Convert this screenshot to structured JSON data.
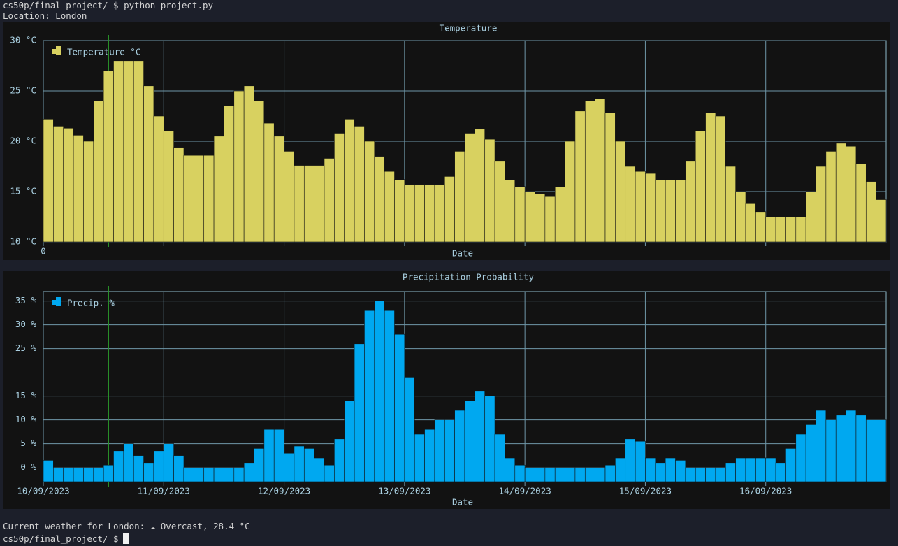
{
  "terminal": {
    "prompt_line": "cs50p/final_project/ $ python project.py",
    "location_line": "Location: London",
    "result_line": "Current weather for London: ☁ Overcast, 28.4 °C",
    "final_prompt": "cs50p/final_project/ $"
  },
  "chart_data": [
    {
      "type": "bar",
      "title": "Temperature",
      "xlabel": "Date",
      "legend": "upper left",
      "grid": true,
      "x": [
        0,
        2,
        4,
        6,
        8,
        10,
        12,
        14,
        16,
        18,
        20,
        22,
        24,
        26,
        28,
        30,
        32,
        34,
        36,
        38,
        40,
        42,
        44,
        46,
        48,
        50,
        52,
        54,
        56,
        58,
        60,
        62,
        64,
        66,
        68,
        70,
        72,
        74,
        76,
        78,
        80,
        82,
        84,
        86,
        88,
        90,
        92,
        94,
        96,
        98,
        100,
        102,
        104,
        106,
        108,
        110,
        112,
        114,
        116,
        118,
        120,
        122,
        124,
        126,
        128,
        130,
        132,
        134,
        136,
        138,
        140,
        142,
        144,
        146,
        148,
        150,
        152,
        154,
        156,
        158,
        160,
        162,
        164,
        166
      ],
      "series": [
        {
          "name": "Temperature °C",
          "color": "#d8d160",
          "values": [
            22.2,
            21.5,
            21.3,
            20.6,
            20.0,
            24.0,
            27.0,
            28.0,
            28.0,
            28.0,
            25.5,
            22.5,
            21.0,
            19.4,
            18.6,
            18.6,
            18.6,
            20.5,
            23.5,
            25.0,
            25.5,
            24.0,
            21.8,
            20.5,
            19.0,
            17.6,
            17.6,
            17.6,
            18.3,
            20.8,
            22.2,
            21.5,
            20.0,
            18.5,
            17.0,
            16.2,
            15.7,
            15.7,
            15.7,
            15.7,
            16.5,
            19.0,
            20.8,
            21.2,
            20.2,
            18.0,
            16.2,
            15.5,
            15.0,
            14.8,
            14.5,
            15.5,
            20.0,
            23.0,
            24.0,
            24.2,
            22.8,
            20.0,
            17.5,
            17.0,
            16.8,
            16.2,
            16.2,
            16.2,
            18.0,
            21.0,
            22.8,
            22.5,
            17.5,
            15.0,
            13.8,
            13.0,
            12.5,
            12.5,
            12.5,
            12.5,
            15.0,
            17.5,
            19.0,
            19.8,
            19.5,
            17.8,
            16.0,
            14.2
          ]
        }
      ],
      "xlim": [
        0,
        168
      ],
      "xticks": [
        {
          "value": 0,
          "label": "0"
        }
      ],
      "xgrid": [
        0,
        24,
        48,
        72,
        96,
        120,
        144
      ],
      "current_x": 13,
      "current_color": "#2a9a2a",
      "ylim": [
        10,
        30
      ],
      "yticks": [
        {
          "value": 10,
          "label": "10 °C"
        },
        {
          "value": 15,
          "label": "15 °C"
        },
        {
          "value": 20,
          "label": "20 °C"
        },
        {
          "value": 25,
          "label": "25 °C"
        },
        {
          "value": 30,
          "label": "30 °C"
        }
      ]
    },
    {
      "type": "bar",
      "title": "Precipitation Probability",
      "xlabel": "Date",
      "legend": "upper left",
      "grid": true,
      "x": [
        0,
        2,
        4,
        6,
        8,
        10,
        12,
        14,
        16,
        18,
        20,
        22,
        24,
        26,
        28,
        30,
        32,
        34,
        36,
        38,
        40,
        42,
        44,
        46,
        48,
        50,
        52,
        54,
        56,
        58,
        60,
        62,
        64,
        66,
        68,
        70,
        72,
        74,
        76,
        78,
        80,
        82,
        84,
        86,
        88,
        90,
        92,
        94,
        96,
        98,
        100,
        102,
        104,
        106,
        108,
        110,
        112,
        114,
        116,
        118,
        120,
        122,
        124,
        126,
        128,
        130,
        132,
        134,
        136,
        138,
        140,
        142,
        144,
        146,
        148,
        150,
        152,
        154,
        156,
        158,
        160,
        162,
        164,
        166
      ],
      "series": [
        {
          "name": "Precip. %",
          "color": "#00a8f0",
          "values": [
            1.5,
            0,
            0,
            0,
            0,
            0,
            0.5,
            3.5,
            5,
            2.5,
            1,
            3.5,
            5,
            2.5,
            0,
            0,
            0,
            0,
            0,
            0,
            1,
            4,
            8,
            8,
            3,
            4.5,
            4,
            2,
            0.5,
            6,
            14,
            26,
            33,
            35,
            33,
            28,
            19,
            7,
            8,
            10,
            10,
            12,
            14,
            16,
            15,
            7,
            2,
            0.5,
            0,
            0,
            0,
            0,
            0,
            0,
            0,
            0,
            0.5,
            2,
            6,
            5.5,
            2,
            1,
            2,
            1.5,
            0,
            0,
            0,
            0,
            1,
            2,
            2,
            2,
            2,
            1,
            4,
            7,
            9,
            12,
            10,
            11,
            12,
            11,
            10,
            10
          ]
        }
      ],
      "xlim": [
        0,
        168
      ],
      "xticks": [
        {
          "value": 0,
          "label": "10/09/2023"
        },
        {
          "value": 24,
          "label": "11/09/2023"
        },
        {
          "value": 48,
          "label": "12/09/2023"
        },
        {
          "value": 72,
          "label": "13/09/2023"
        },
        {
          "value": 96,
          "label": "14/09/2023"
        },
        {
          "value": 120,
          "label": "15/09/2023"
        },
        {
          "value": 144,
          "label": "16/09/2023"
        }
      ],
      "current_x": 13,
      "current_color": "#2a9a2a",
      "ylim": [
        -3,
        37
      ],
      "yticks": [
        {
          "value": 0,
          "label": "0 %"
        },
        {
          "value": 5,
          "label": "5 %"
        },
        {
          "value": 10,
          "label": "10 %"
        },
        {
          "value": 15,
          "label": "15 %"
        },
        {
          "value": 25,
          "label": "25 %"
        },
        {
          "value": 30,
          "label": "30 %"
        },
        {
          "value": 35,
          "label": "35 %"
        }
      ]
    }
  ]
}
